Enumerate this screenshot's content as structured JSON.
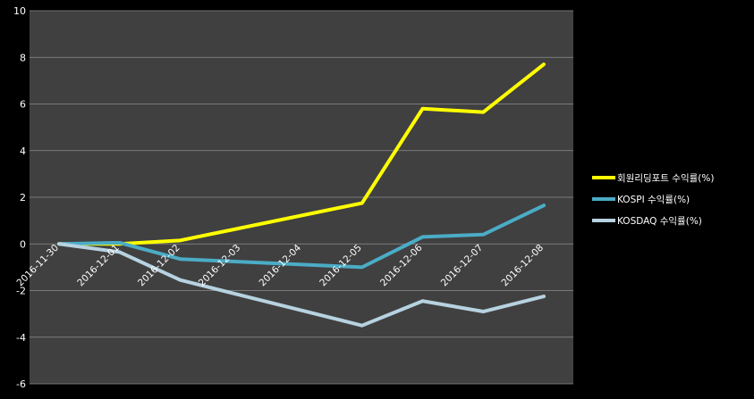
{
  "chart_data": {
    "type": "line",
    "x": [
      "2016-11-30",
      "2016-12-01",
      "2016-12-02",
      "2016-12-03",
      "2016-12-04",
      "2016-12-05",
      "2016-12-06",
      "2016-12-07",
      "2016-12-08"
    ],
    "series": [
      {
        "name": "회원리딩포트 수익률(%)",
        "color": "#ffff00",
        "values": [
          0,
          0.0,
          0.15,
          null,
          null,
          1.75,
          5.8,
          5.65,
          7.7
        ]
      },
      {
        "name": "KOSPI 수익률(%)",
        "color": "#4bacc6",
        "values": [
          0,
          0.05,
          -0.65,
          null,
          null,
          -1.0,
          0.3,
          0.4,
          1.65
        ]
      },
      {
        "name": "KOSDAQ 수익률(%)",
        "color": "#b7d2e0",
        "values": [
          0,
          -0.35,
          -1.55,
          null,
          null,
          -3.5,
          -2.45,
          -2.9,
          -2.25
        ]
      }
    ],
    "y_ticks": [
      "10",
      "8",
      "6",
      "4",
      "2",
      "0",
      "-2",
      "-4",
      "-6"
    ],
    "ylim": [
      -6,
      10
    ],
    "grid": true,
    "legend": "right",
    "plot_background": "#404040",
    "page_background": "#000000"
  }
}
